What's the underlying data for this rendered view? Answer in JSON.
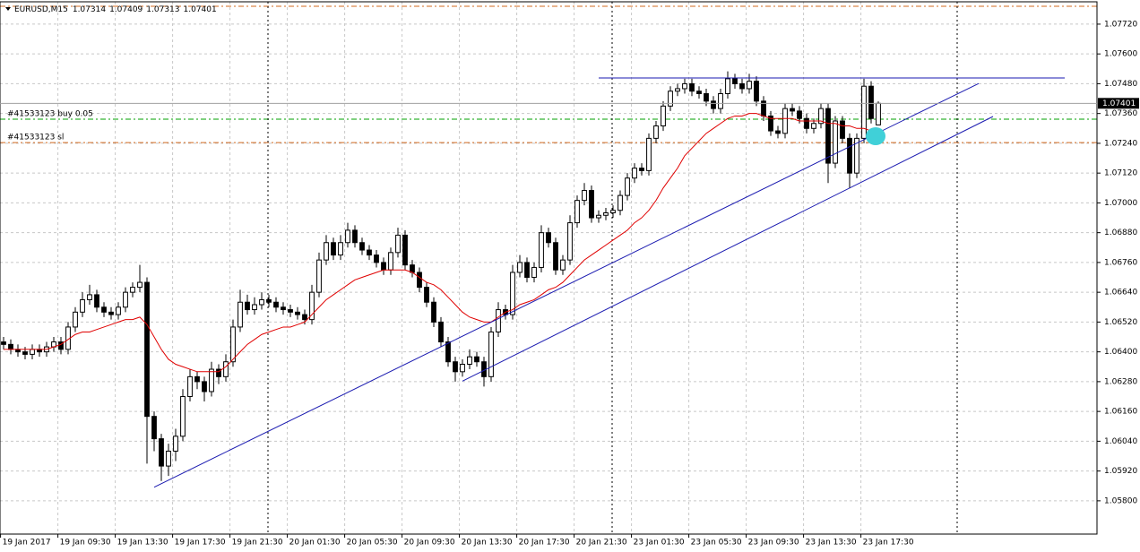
{
  "chart_data": {
    "type": "candlestick",
    "symbol": "EURUSD,M15",
    "up_color": "#ffffff",
    "down_color": "#000000",
    "wick_color": "#000000",
    "grid": true,
    "xlim": [
      -0.5,
      152.5
    ],
    "ylim": [
      1.05666,
      1.0781
    ],
    "xticks": [
      {
        "value": 0,
        "label": "19 Jan 2017"
      },
      {
        "value": 8,
        "label": "19 Jan 09:30"
      },
      {
        "value": 16,
        "label": "19 Jan 13:30"
      },
      {
        "value": 24,
        "label": "19 Jan 17:30"
      },
      {
        "value": 32,
        "label": "19 Jan 21:30"
      },
      {
        "value": 40,
        "label": "20 Jan 01:30"
      },
      {
        "value": 48,
        "label": "20 Jan 05:30"
      },
      {
        "value": 56,
        "label": "20 Jan 09:30"
      },
      {
        "value": 64,
        "label": "20 Jan 13:30"
      },
      {
        "value": 72,
        "label": "20 Jan 17:30"
      },
      {
        "value": 80,
        "label": "20 Jan 21:30"
      },
      {
        "value": 88,
        "label": "23 Jan 01:30"
      },
      {
        "value": 96,
        "label": "23 Jan 05:30"
      },
      {
        "value": 104,
        "label": "23 Jan 09:30"
      },
      {
        "value": 112,
        "label": "23 Jan 13:30"
      },
      {
        "value": 120,
        "label": "23 Jan 17:30"
      }
    ],
    "yticks": [
      {
        "value": 1.0772,
        "label": "1.07720"
      },
      {
        "value": 1.076,
        "label": "1.07600"
      },
      {
        "value": 1.0748,
        "label": "1.07480"
      },
      {
        "value": 1.0736,
        "label": "1.07360"
      },
      {
        "value": 1.0724,
        "label": "1.07240"
      },
      {
        "value": 1.0712,
        "label": "1.07120"
      },
      {
        "value": 1.07,
        "label": "1.07000"
      },
      {
        "value": 1.0688,
        "label": "1.06880"
      },
      {
        "value": 1.0676,
        "label": "1.06760"
      },
      {
        "value": 1.0664,
        "label": "1.06640"
      },
      {
        "value": 1.0652,
        "label": "1.06520"
      },
      {
        "value": 1.064,
        "label": "1.06400"
      },
      {
        "value": 1.0628,
        "label": "1.06280"
      },
      {
        "value": 1.0616,
        "label": "1.06160"
      },
      {
        "value": 1.0604,
        "label": "1.06040"
      },
      {
        "value": 1.0592,
        "label": "1.05920"
      },
      {
        "value": 1.058,
        "label": "1.05800"
      }
    ],
    "candles": [
      [
        1.0644,
        1.0646,
        1.0641,
        1.0643
      ],
      [
        1.0643,
        1.0645,
        1.0639,
        1.0641
      ],
      [
        1.0641,
        1.0643,
        1.0638,
        1.064
      ],
      [
        1.064,
        1.0642,
        1.0637,
        1.0639
      ],
      [
        1.0639,
        1.0643,
        1.0637,
        1.0641
      ],
      [
        1.0641,
        1.0643,
        1.0638,
        1.064
      ],
      [
        1.064,
        1.0644,
        1.0638,
        1.0642
      ],
      [
        1.0642,
        1.0646,
        1.064,
        1.0644
      ],
      [
        1.0644,
        1.0646,
        1.0639,
        1.0641
      ],
      [
        1.0641,
        1.0652,
        1.0639,
        1.065
      ],
      [
        1.065,
        1.0658,
        1.0648,
        1.0656
      ],
      [
        1.0656,
        1.0664,
        1.0654,
        1.0661
      ],
      [
        1.0661,
        1.0667,
        1.0659,
        1.0663
      ],
      [
        1.0663,
        1.0665,
        1.0656,
        1.0658
      ],
      [
        1.0658,
        1.066,
        1.0654,
        1.0656
      ],
      [
        1.0656,
        1.0658,
        1.0653,
        1.0655
      ],
      [
        1.0655,
        1.066,
        1.0653,
        1.0658
      ],
      [
        1.0658,
        1.0666,
        1.0656,
        1.0664
      ],
      [
        1.0664,
        1.0668,
        1.0662,
        1.0666
      ],
      [
        1.0666,
        1.0675,
        1.0664,
        1.0668
      ],
      [
        1.0668,
        1.067,
        1.0595,
        1.0614
      ],
      [
        1.0614,
        1.0616,
        1.06,
        1.0605
      ],
      [
        1.0605,
        1.0607,
        1.0588,
        1.0594
      ],
      [
        1.0594,
        1.0603,
        1.059,
        1.06
      ],
      [
        1.06,
        1.0609,
        1.0596,
        1.0606
      ],
      [
        1.0606,
        1.0625,
        1.0604,
        1.0622
      ],
      [
        1.0622,
        1.0633,
        1.062,
        1.063
      ],
      [
        1.063,
        1.0632,
        1.0625,
        1.0628
      ],
      [
        1.0628,
        1.063,
        1.062,
        1.0624
      ],
      [
        1.0624,
        1.0636,
        1.0622,
        1.0633
      ],
      [
        1.0633,
        1.0635,
        1.0627,
        1.063
      ],
      [
        1.063,
        1.0639,
        1.0628,
        1.0636
      ],
      [
        1.0636,
        1.0653,
        1.0634,
        1.065
      ],
      [
        1.065,
        1.0665,
        1.0648,
        1.066
      ],
      [
        1.066,
        1.0663,
        1.0655,
        1.0657
      ],
      [
        1.0657,
        1.0662,
        1.0655,
        1.0659
      ],
      [
        1.0659,
        1.0664,
        1.0657,
        1.0661
      ],
      [
        1.0661,
        1.0663,
        1.0658,
        1.066
      ],
      [
        1.066,
        1.0662,
        1.0656,
        1.0658
      ],
      [
        1.0658,
        1.066,
        1.0655,
        1.0657
      ],
      [
        1.0657,
        1.0659,
        1.0654,
        1.0656
      ],
      [
        1.0656,
        1.0658,
        1.0653,
        1.0655
      ],
      [
        1.0655,
        1.0657,
        1.0651,
        1.0653
      ],
      [
        1.0653,
        1.0667,
        1.0651,
        1.0664
      ],
      [
        1.0664,
        1.068,
        1.0662,
        1.0677
      ],
      [
        1.0677,
        1.0687,
        1.0675,
        1.0684
      ],
      [
        1.0684,
        1.0686,
        1.0677,
        1.0679
      ],
      [
        1.0679,
        1.0687,
        1.0677,
        1.0684
      ],
      [
        1.0684,
        1.0692,
        1.0682,
        1.0689
      ],
      [
        1.0689,
        1.0691,
        1.0682,
        1.0684
      ],
      [
        1.0684,
        1.0686,
        1.0679,
        1.0681
      ],
      [
        1.0681,
        1.0683,
        1.0677,
        1.0679
      ],
      [
        1.0679,
        1.0681,
        1.0674,
        1.0676
      ],
      [
        1.0676,
        1.0678,
        1.0671,
        1.0673
      ],
      [
        1.0673,
        1.0682,
        1.0671,
        1.068
      ],
      [
        1.068,
        1.069,
        1.0678,
        1.0687
      ],
      [
        1.0687,
        1.0689,
        1.0673,
        1.0675
      ],
      [
        1.0675,
        1.0677,
        1.067,
        1.0672
      ],
      [
        1.0672,
        1.0674,
        1.0664,
        1.0666
      ],
      [
        1.0666,
        1.0668,
        1.0658,
        1.066
      ],
      [
        1.066,
        1.0662,
        1.065,
        1.0652
      ],
      [
        1.0652,
        1.0654,
        1.0642,
        1.0644
      ],
      [
        1.0644,
        1.0646,
        1.0634,
        1.0636
      ],
      [
        1.0636,
        1.0638,
        1.0628,
        1.0632
      ],
      [
        1.0632,
        1.0637,
        1.063,
        1.0635
      ],
      [
        1.0635,
        1.0641,
        1.0633,
        1.0638
      ],
      [
        1.0638,
        1.064,
        1.0634,
        1.0636
      ],
      [
        1.0636,
        1.0638,
        1.0626,
        1.063
      ],
      [
        1.063,
        1.065,
        1.0628,
        1.0648
      ],
      [
        1.0648,
        1.066,
        1.0646,
        1.0657
      ],
      [
        1.0657,
        1.0659,
        1.0653,
        1.0655
      ],
      [
        1.0655,
        1.0675,
        1.0653,
        1.0672
      ],
      [
        1.0672,
        1.0679,
        1.067,
        1.0676
      ],
      [
        1.0676,
        1.0678,
        1.0668,
        1.067
      ],
      [
        1.067,
        1.0676,
        1.0668,
        1.0674
      ],
      [
        1.0674,
        1.0691,
        1.0672,
        1.0688
      ],
      [
        1.0688,
        1.069,
        1.0682,
        1.0684
      ],
      [
        1.0684,
        1.0686,
        1.0671,
        1.0673
      ],
      [
        1.0673,
        1.0679,
        1.0671,
        1.0677
      ],
      [
        1.0677,
        1.0695,
        1.0675,
        1.0692
      ],
      [
        1.0692,
        1.0703,
        1.069,
        1.0701
      ],
      [
        1.0701,
        1.0708,
        1.0699,
        1.0705
      ],
      [
        1.0705,
        1.0707,
        1.0692,
        1.0694
      ],
      [
        1.0694,
        1.0697,
        1.0692,
        1.0695
      ],
      [
        1.0695,
        1.0698,
        1.0693,
        1.0696
      ],
      [
        1.0696,
        1.0699,
        1.0694,
        1.0697
      ],
      [
        1.0697,
        1.0705,
        1.0695,
        1.0703
      ],
      [
        1.0703,
        1.0712,
        1.0701,
        1.071
      ],
      [
        1.071,
        1.0716,
        1.0708,
        1.0714
      ],
      [
        1.0714,
        1.0716,
        1.0711,
        1.0713
      ],
      [
        1.0713,
        1.0728,
        1.0711,
        1.0726
      ],
      [
        1.0726,
        1.0733,
        1.0724,
        1.0731
      ],
      [
        1.0731,
        1.0741,
        1.0729,
        1.0739
      ],
      [
        1.0739,
        1.0747,
        1.0737,
        1.0745
      ],
      [
        1.0745,
        1.0748,
        1.0743,
        1.0746
      ],
      [
        1.0746,
        1.075,
        1.0744,
        1.0748
      ],
      [
        1.0748,
        1.075,
        1.0743,
        1.0745
      ],
      [
        1.0745,
        1.0747,
        1.0742,
        1.0744
      ],
      [
        1.0744,
        1.0746,
        1.0739,
        1.0741
      ],
      [
        1.0741,
        1.0743,
        1.0736,
        1.0738
      ],
      [
        1.0738,
        1.0746,
        1.0736,
        1.0744
      ],
      [
        1.0744,
        1.0753,
        1.0742,
        1.075
      ],
      [
        1.075,
        1.0752,
        1.0746,
        1.0748
      ],
      [
        1.0748,
        1.075,
        1.0744,
        1.0746
      ],
      [
        1.0746,
        1.0752,
        1.0744,
        1.0749
      ],
      [
        1.0749,
        1.0751,
        1.0739,
        1.0741
      ],
      [
        1.0741,
        1.0743,
        1.0733,
        1.0735
      ],
      [
        1.0735,
        1.0737,
        1.0727,
        1.0729
      ],
      [
        1.0729,
        1.0731,
        1.0726,
        1.0728
      ],
      [
        1.0728,
        1.074,
        1.0726,
        1.0738
      ],
      [
        1.0738,
        1.074,
        1.0735,
        1.0737
      ],
      [
        1.0737,
        1.0739,
        1.0732,
        1.0734
      ],
      [
        1.0734,
        1.0736,
        1.0728,
        1.073
      ],
      [
        1.073,
        1.0734,
        1.0728,
        1.0732
      ],
      [
        1.0732,
        1.074,
        1.073,
        1.0738
      ],
      [
        1.0738,
        1.074,
        1.0708,
        1.0716
      ],
      [
        1.0716,
        1.0735,
        1.0714,
        1.0733
      ],
      [
        1.0733,
        1.0735,
        1.0724,
        1.0726
      ],
      [
        1.0726,
        1.0728,
        1.0706,
        1.0712
      ],
      [
        1.0712,
        1.0728,
        1.071,
        1.0726
      ],
      [
        1.0726,
        1.075,
        1.0724,
        1.0747
      ],
      [
        1.0747,
        1.0749,
        1.0732,
        1.0734
      ],
      [
        1.07314,
        1.07409,
        1.07313,
        1.07401
      ]
    ],
    "ma": {
      "color": "#e00000",
      "values": [
        1.0641,
        1.0641,
        1.0641,
        1.0641,
        1.0641,
        1.0641,
        1.0641,
        1.0642,
        1.0643,
        1.0645,
        1.0647,
        1.0648,
        1.0648,
        1.0649,
        1.065,
        1.0651,
        1.0652,
        1.0653,
        1.0653,
        1.0654,
        1.0651,
        1.0646,
        1.0641,
        1.0637,
        1.0635,
        1.0634,
        1.0633,
        1.0632,
        1.0632,
        1.0632,
        1.0632,
        1.0634,
        1.0637,
        1.064,
        1.0643,
        1.0645,
        1.0647,
        1.0648,
        1.0649,
        1.065,
        1.065,
        1.0651,
        1.0652,
        1.0655,
        1.0658,
        1.0661,
        1.0663,
        1.0665,
        1.0667,
        1.0669,
        1.067,
        1.0671,
        1.0672,
        1.0673,
        1.0673,
        1.0673,
        1.0673,
        1.0672,
        1.067,
        1.0668,
        1.0667,
        1.0665,
        1.0662,
        1.0659,
        1.0656,
        1.0654,
        1.0653,
        1.0652,
        1.0652,
        1.0654,
        1.0656,
        1.0657,
        1.0659,
        1.066,
        1.0661,
        1.0663,
        1.0665,
        1.0666,
        1.0668,
        1.0671,
        1.0674,
        1.0677,
        1.0679,
        1.0681,
        1.0683,
        1.0685,
        1.0687,
        1.0689,
        1.0692,
        1.0694,
        1.0697,
        1.0701,
        1.0706,
        1.071,
        1.0714,
        1.0719,
        1.0722,
        1.0725,
        1.0728,
        1.073,
        1.0732,
        1.0734,
        1.0735,
        1.0735,
        1.0736,
        1.0736,
        1.0735,
        1.0734,
        1.0734,
        1.0734,
        1.0734,
        1.0733,
        1.0733,
        1.0733,
        1.0733,
        1.0732,
        1.0732,
        1.0731,
        1.0731,
        1.073,
        1.073,
        1.0729,
        1.0729
      ]
    },
    "trendlines": [
      {
        "color": "#1a1ab0",
        "x": [
          21,
          136
        ],
        "y": [
          1.05855,
          1.07481
        ]
      },
      {
        "color": "#1a1ab0",
        "x": [
          64,
          138
        ],
        "y": [
          1.06282,
          1.07348
        ]
      },
      {
        "color": "#1a1ab0",
        "x": [
          83,
          148
        ],
        "y": [
          1.07503,
          1.07503
        ]
      }
    ],
    "levels": [
      {
        "value": 1.07792,
        "color": "#d2691e"
      },
      {
        "value": 1.07337,
        "color": "#00a000",
        "label": "#41533123 buy 0.05"
      },
      {
        "value": 1.07243,
        "color": "#d2691e",
        "label": "#41533123 sl"
      }
    ]
  }
}
